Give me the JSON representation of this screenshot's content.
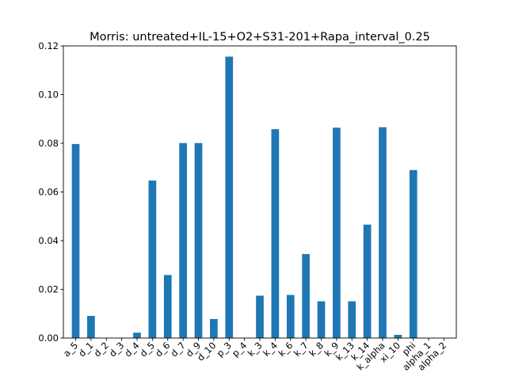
{
  "chart_data": {
    "type": "bar",
    "title": "Morris: untreated+IL-15+O2+S31-201+Rapa_interval_0.25",
    "xlabel": "",
    "ylabel": "",
    "ylim": [
      0,
      0.12
    ],
    "yticks": [
      "0.00",
      "0.02",
      "0.04",
      "0.06",
      "0.08",
      "0.10",
      "0.12"
    ],
    "grid": false,
    "legend": "none",
    "bar_color": "#1f77b4",
    "categories": [
      "a_5",
      "d_1",
      "d_2",
      "d_3",
      "d_4",
      "d_5",
      "d_6",
      "d_7",
      "d_9",
      "d_10",
      "p_3",
      "p_4",
      "k_3",
      "k_4",
      "k_6",
      "k_7",
      "k_8",
      "k_9",
      "k_13",
      "k_14",
      "k_alpha",
      "xi_10",
      "phi",
      "alpha_1",
      "alpha_2"
    ],
    "values": [
      0.0797,
      0.0091,
      0.0,
      0.0,
      0.0022,
      0.0647,
      0.0259,
      0.0801,
      0.0801,
      0.0078,
      0.1156,
      0.0,
      0.0174,
      0.0858,
      0.0177,
      0.0345,
      0.0151,
      0.0864,
      0.0151,
      0.0466,
      0.0866,
      0.0013,
      0.069,
      0.0,
      0.0
    ]
  }
}
